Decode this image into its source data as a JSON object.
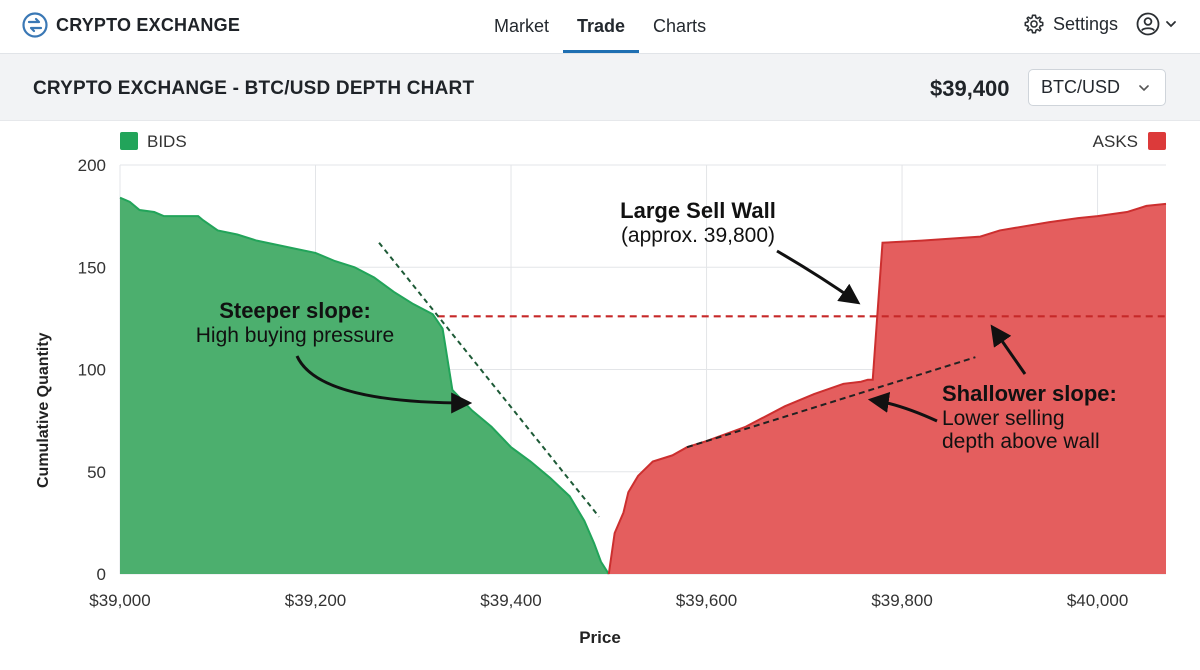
{
  "header": {
    "brand": "CRYPTO EXCHANGE",
    "logo_icon": "exchange-logo-icon",
    "nav": [
      {
        "label": "Market",
        "active": false
      },
      {
        "label": "Trade",
        "active": true
      },
      {
        "label": "Charts",
        "active": false
      }
    ],
    "settings_label": "Settings",
    "settings_icon": "gear-icon",
    "account_icon": "user-icon",
    "accent": "#1f6fb2"
  },
  "subheader": {
    "title": "CRYPTO EXCHANGE - BTC/USD DEPTH CHART",
    "price": "$39,400",
    "pair": "BTC/USD"
  },
  "chart_data": {
    "type": "area",
    "title": "",
    "xlabel": "Price",
    "ylabel": "Cumulative Quantity",
    "xlim": [
      39000,
      40070
    ],
    "ylim": [
      0,
      200
    ],
    "x_ticks": [
      39000,
      39200,
      39400,
      39600,
      39800,
      40000
    ],
    "x_tick_labels": [
      "$39,000",
      "$39,200",
      "$39,400",
      "$39,600",
      "$39,800",
      "$40,000"
    ],
    "y_ticks": [
      0,
      50,
      100,
      150,
      200
    ],
    "y_tick_labels": [
      "0",
      "50",
      "100",
      "150",
      "200"
    ],
    "grid": true,
    "legend": [
      {
        "label": "BIDS",
        "color": "#22a45a",
        "position": "top-left"
      },
      {
        "label": "ASKS",
        "color": "#dc3a3a",
        "position": "top-right"
      }
    ],
    "series": [
      {
        "name": "BIDS",
        "color": "#22a45a",
        "fill": "#4caf6e",
        "points": [
          [
            39000,
            184
          ],
          [
            39010,
            182
          ],
          [
            39020,
            178
          ],
          [
            39035,
            177
          ],
          [
            39045,
            175
          ],
          [
            39060,
            175
          ],
          [
            39080,
            175
          ],
          [
            39085,
            173
          ],
          [
            39100,
            168
          ],
          [
            39120,
            166
          ],
          [
            39140,
            163
          ],
          [
            39160,
            161
          ],
          [
            39180,
            159
          ],
          [
            39200,
            157
          ],
          [
            39220,
            153
          ],
          [
            39240,
            150
          ],
          [
            39260,
            145
          ],
          [
            39280,
            138
          ],
          [
            39300,
            132
          ],
          [
            39320,
            127
          ],
          [
            39330,
            120
          ],
          [
            39340,
            90
          ],
          [
            39360,
            80
          ],
          [
            39380,
            72
          ],
          [
            39400,
            62
          ],
          [
            39420,
            55
          ],
          [
            39440,
            47
          ],
          [
            39460,
            38
          ],
          [
            39475,
            26
          ],
          [
            39485,
            15
          ],
          [
            39492,
            6
          ],
          [
            39500,
            0
          ]
        ]
      },
      {
        "name": "ASKS",
        "color": "#cc2f2f",
        "fill": "#e45e5e",
        "points": [
          [
            39500,
            0
          ],
          [
            39506,
            20
          ],
          [
            39515,
            30
          ],
          [
            39520,
            40
          ],
          [
            39530,
            48
          ],
          [
            39545,
            55
          ],
          [
            39565,
            58
          ],
          [
            39580,
            62
          ],
          [
            39600,
            65
          ],
          [
            39640,
            72
          ],
          [
            39680,
            82
          ],
          [
            39710,
            88
          ],
          [
            39740,
            93
          ],
          [
            39758,
            94
          ],
          [
            39765,
            95
          ],
          [
            39770,
            95
          ],
          [
            39780,
            162
          ],
          [
            39820,
            163
          ],
          [
            39850,
            164
          ],
          [
            39880,
            165
          ],
          [
            39900,
            168
          ],
          [
            39950,
            172
          ],
          [
            39980,
            174
          ],
          [
            40000,
            175
          ],
          [
            40030,
            177
          ],
          [
            40050,
            180
          ],
          [
            40070,
            181
          ]
        ]
      }
    ],
    "sell_wall_level": 126,
    "sell_wall_price": 39800,
    "annotations": [
      {
        "title": "Large Sell Wall",
        "text": "(approx. 39,800)"
      },
      {
        "title": "Steeper slope:",
        "text": "High buying pressure"
      },
      {
        "title": "Shallower slope:",
        "text": "Lower selling",
        "text2": "depth above wall"
      }
    ]
  }
}
